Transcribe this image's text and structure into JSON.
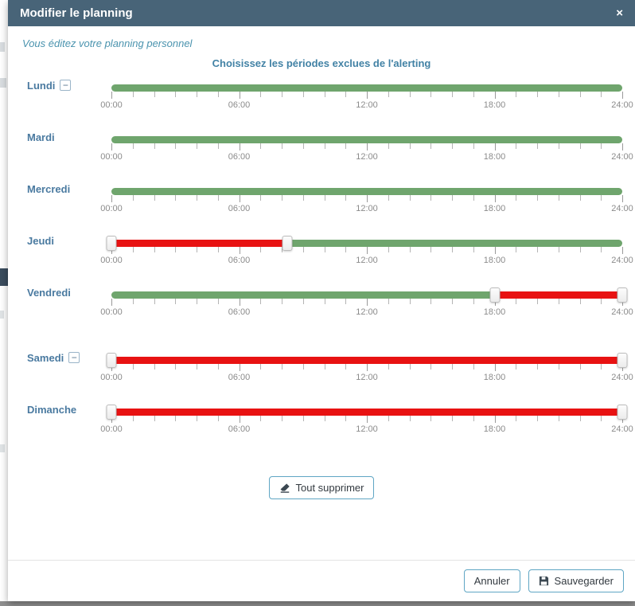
{
  "modal": {
    "title": "Modifier le planning",
    "close_icon": "×",
    "subtitle": "Vous éditez votre planning personnel",
    "heading": "Choisissez les périodes exclues de l'alerting",
    "collapse_glyph": "−",
    "clear_all_label": "Tout supprimer",
    "footer": {
      "cancel": "Annuler",
      "save": "Sauvegarder"
    }
  },
  "colors": {
    "header_bg": "#486478",
    "slider_green": "#6fa56d",
    "slider_red": "#e81212",
    "accent": "#4282a5",
    "day_label": "#4a7aa0",
    "button_border": "#5fa6c4"
  },
  "slider": {
    "hours": 24,
    "tick_labels": [
      "00:00",
      "06:00",
      "12:00",
      "18:00",
      "24:00"
    ]
  },
  "days": [
    {
      "name": "Lundi",
      "has_collapse": true,
      "extra_gap": false,
      "segments": [
        {
          "start": 0,
          "end": 24,
          "state": "green"
        }
      ],
      "handles": []
    },
    {
      "name": "Mardi",
      "has_collapse": false,
      "extra_gap": false,
      "segments": [
        {
          "start": 0,
          "end": 24,
          "state": "green"
        }
      ],
      "handles": []
    },
    {
      "name": "Mercredi",
      "has_collapse": false,
      "extra_gap": false,
      "segments": [
        {
          "start": 0,
          "end": 24,
          "state": "green"
        }
      ],
      "handles": []
    },
    {
      "name": "Jeudi",
      "has_collapse": false,
      "extra_gap": false,
      "segments": [
        {
          "start": 0,
          "end": 8.25,
          "state": "red"
        },
        {
          "start": 8.25,
          "end": 24,
          "state": "green"
        }
      ],
      "handles": [
        0,
        8.25
      ]
    },
    {
      "name": "Vendredi",
      "has_collapse": false,
      "extra_gap": false,
      "segments": [
        {
          "start": 0,
          "end": 18,
          "state": "green"
        },
        {
          "start": 18,
          "end": 24,
          "state": "red"
        }
      ],
      "handles": [
        18,
        24
      ]
    },
    {
      "name": "Samedi",
      "has_collapse": true,
      "extra_gap": true,
      "segments": [
        {
          "start": 0,
          "end": 24,
          "state": "red"
        }
      ],
      "handles": [
        0,
        24
      ]
    },
    {
      "name": "Dimanche",
      "has_collapse": false,
      "extra_gap": false,
      "segments": [
        {
          "start": 0,
          "end": 24,
          "state": "red"
        }
      ],
      "handles": [
        0,
        24
      ]
    }
  ]
}
